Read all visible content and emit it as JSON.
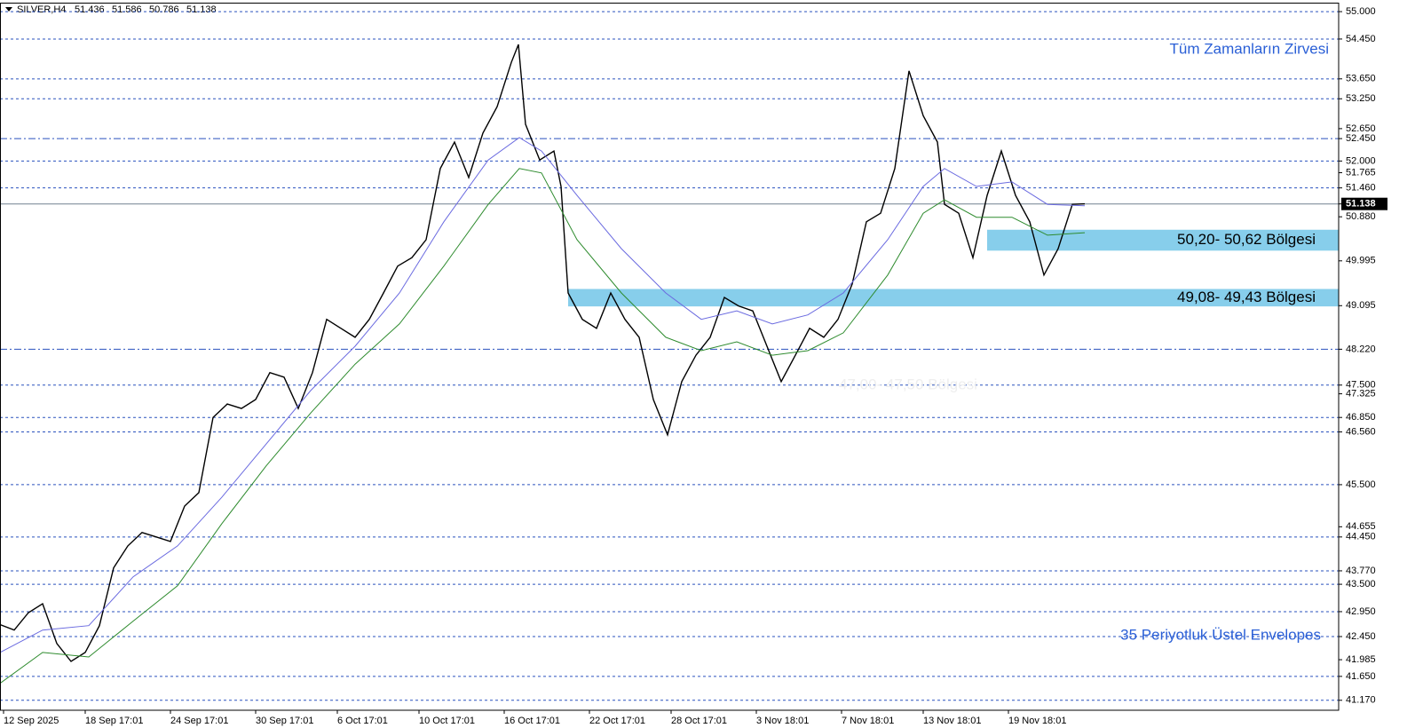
{
  "chart_data": {
    "type": "line",
    "title": "SILVER,H4",
    "ohlc": [
      51.436,
      51.586,
      50.786,
      51.138
    ],
    "xlim": [
      0,
      377
    ],
    "ylim": [
      40.97,
      55.18
    ],
    "xticks": [
      {
        "value": 1,
        "label": "12 Sep 2025"
      },
      {
        "value": 24,
        "label": "18 Sep 17:01"
      },
      {
        "value": 48,
        "label": "24 Sep 17:01"
      },
      {
        "value": 72,
        "label": "30 Sep 17:01"
      },
      {
        "value": 95,
        "label": "6 Oct 17:01"
      },
      {
        "value": 118,
        "label": "10 Oct 17:01"
      },
      {
        "value": 142,
        "label": "16 Oct 17:01"
      },
      {
        "value": 166,
        "label": "22 Oct 17:01"
      },
      {
        "value": 189,
        "label": "28 Oct 17:01"
      },
      {
        "value": 213,
        "label": "3 Nov 18:01"
      },
      {
        "value": 237,
        "label": "7 Nov 18:01"
      },
      {
        "value": 260,
        "label": "13 Nov 18:01"
      },
      {
        "value": 284,
        "label": "19 Nov 18:01"
      }
    ],
    "yticks": [
      {
        "value": 55,
        "label": "55.000"
      },
      {
        "value": 54.45,
        "label": "54.450"
      },
      {
        "value": 53.65,
        "label": "53.650"
      },
      {
        "value": 53.25,
        "label": "53.250"
      },
      {
        "value": 52.65,
        "label": "52.650"
      },
      {
        "value": 52.45,
        "label": "52.450"
      },
      {
        "value": 52,
        "label": "52.000"
      },
      {
        "value": 51.765,
        "label": "51.765"
      },
      {
        "value": 51.46,
        "label": "51.460"
      },
      {
        "value": 51.138,
        "label": "51.138"
      },
      {
        "value": 50.88,
        "label": "50.880"
      },
      {
        "value": 49.995,
        "label": "49.995"
      },
      {
        "value": 49.095,
        "label": "49.095"
      },
      {
        "value": 48.22,
        "label": "48.220"
      },
      {
        "value": 47.5,
        "label": "47.500"
      },
      {
        "value": 47.325,
        "label": "47.325"
      },
      {
        "value": 46.85,
        "label": "46.850"
      },
      {
        "value": 46.56,
        "label": "46.560"
      },
      {
        "value": 45.5,
        "label": "45.500"
      },
      {
        "value": 44.655,
        "label": "44.655"
      },
      {
        "value": 44.45,
        "label": "44.450"
      },
      {
        "value": 43.77,
        "label": "43.770"
      },
      {
        "value": 43.5,
        "label": "43.500"
      },
      {
        "value": 42.95,
        "label": "42.950"
      },
      {
        "value": 42.45,
        "label": "42.450"
      },
      {
        "value": 41.985,
        "label": "41.985"
      },
      {
        "value": 41.65,
        "label": "41.650"
      },
      {
        "value": 41.17,
        "label": "41.170"
      }
    ],
    "hlines": [
      55,
      54.45,
      53.65,
      53.25,
      52,
      51.46,
      47.5,
      46.85,
      46.56,
      45.5,
      44.45,
      43.77,
      43.5,
      42.95,
      42.45,
      41.65,
      41.17
    ],
    "dashdot_lines": [
      52.45,
      48.22
    ],
    "price_line": 51.138,
    "zones": [
      {
        "label": "50,20- 50,62 Bölgesi",
        "range": [
          50.2,
          50.62
        ],
        "start_x": 278
      },
      {
        "label": "49,08- 49,43 Bölgesi",
        "range": [
          49.08,
          49.43
        ],
        "start_x": 160
      }
    ],
    "annotations": [
      "Tüm Zamanların Zirvesi",
      "35 Periyotluk Üstel Envelopes",
      "47,00- 47,50 Bölgesi"
    ],
    "series": [
      {
        "color": "#000000",
        "x": [
          0,
          4,
          8,
          12,
          16,
          20,
          24,
          28,
          32,
          36,
          40,
          44,
          48,
          52,
          56,
          60,
          64,
          68,
          72,
          76,
          80,
          84,
          88,
          92,
          96,
          100,
          104,
          108,
          112,
          116,
          120,
          124,
          128,
          132,
          136,
          140,
          144,
          146,
          148,
          152,
          156,
          158,
          160,
          164,
          168,
          172,
          176,
          180,
          184,
          188,
          192,
          196,
          200,
          204,
          208,
          212,
          216,
          220,
          224,
          228,
          232,
          236,
          240,
          244,
          248,
          252,
          256,
          260,
          264,
          266,
          270,
          274,
          278,
          282,
          286,
          290,
          294,
          298,
          302,
          305.5
        ],
        "values": [
          42.69,
          42.58,
          42.93,
          43.11,
          42.31,
          41.95,
          42.13,
          42.67,
          43.83,
          44.27,
          44.54,
          44.45,
          44.36,
          45.07,
          45.34,
          46.85,
          47.12,
          47.03,
          47.21,
          47.75,
          47.66,
          47.03,
          47.75,
          48.82,
          48.64,
          48.46,
          48.82,
          49.35,
          49.89,
          50.06,
          50.42,
          51.85,
          52.38,
          51.67,
          52.56,
          53.09,
          53.98,
          54.34,
          52.74,
          52.02,
          52.2,
          51.49,
          49.35,
          48.82,
          48.64,
          49.35,
          48.82,
          48.46,
          47.21,
          46.5,
          47.57,
          48.1,
          48.46,
          49.26,
          49.09,
          48.99,
          48.28,
          47.57,
          48.1,
          48.64,
          48.46,
          48.82,
          49.53,
          50.78,
          50.95,
          51.85,
          53.81,
          52.91,
          52.38,
          51.13,
          50.95,
          50.06,
          51.31,
          52.2,
          51.31,
          50.78,
          49.71,
          50.24,
          51.13,
          51.14
        ]
      },
      {
        "color": "#6a6ae0",
        "x": [
          0,
          12,
          25,
          37.5,
          50,
          62.5,
          75,
          87.5,
          100,
          112.5,
          125,
          137.5,
          146.25,
          152.5,
          162.5,
          175,
          187.5,
          197.5,
          207.5,
          217.5,
          227.5,
          237.5,
          250,
          260,
          266,
          275,
          285,
          295,
          305.5
        ],
        "values": [
          42.13,
          42.58,
          42.67,
          43.65,
          44.27,
          45.25,
          46.32,
          47.39,
          48.28,
          49.35,
          50.78,
          52.02,
          52.47,
          52.2,
          51.31,
          50.24,
          49.35,
          48.82,
          48.99,
          48.73,
          48.91,
          49.35,
          50.42,
          51.49,
          51.85,
          51.49,
          51.58,
          51.13,
          51.1
        ]
      },
      {
        "color": "#2e8b2e",
        "x": [
          0,
          12,
          25,
          37.5,
          50,
          62.5,
          75,
          87.5,
          100,
          112.5,
          125,
          137.5,
          146.25,
          152.5,
          162.5,
          175,
          187.5,
          197.5,
          207.5,
          217.5,
          227.5,
          237.5,
          250,
          260,
          266,
          275,
          285,
          295,
          305.5
        ],
        "values": [
          41.51,
          42.13,
          42.04,
          42.76,
          43.47,
          44.72,
          45.88,
          46.94,
          47.92,
          48.73,
          49.89,
          51.13,
          51.85,
          51.76,
          50.42,
          49.35,
          48.46,
          48.19,
          48.37,
          48.1,
          48.19,
          48.55,
          49.71,
          50.95,
          51.22,
          50.87,
          50.87,
          50.51,
          50.56
        ]
      }
    ]
  }
}
